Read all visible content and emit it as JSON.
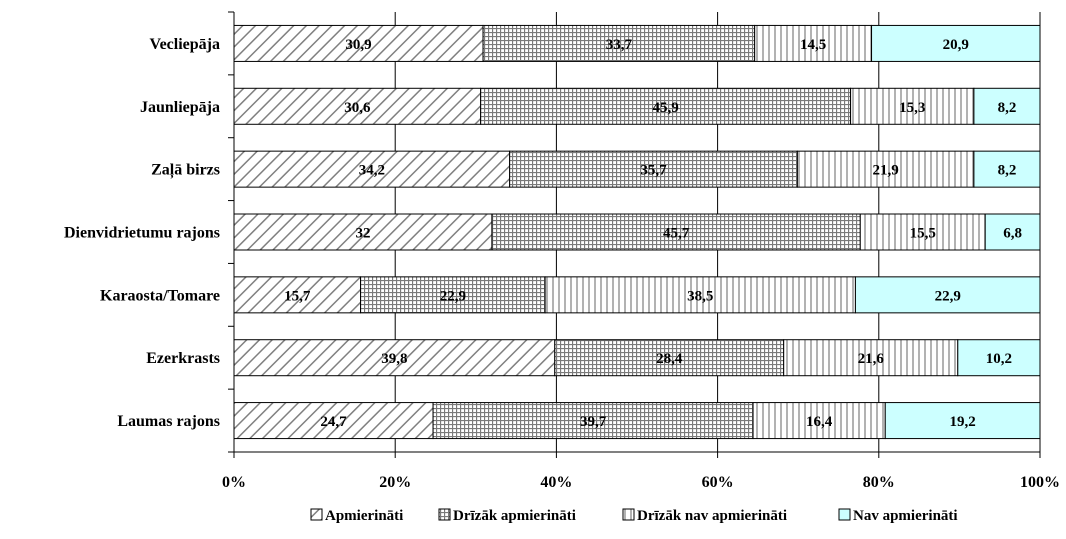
{
  "chart_data": {
    "type": "bar",
    "orientation": "horizontal",
    "stacked": "percent",
    "categories": [
      "Vecliepāja",
      "Jaunliepāja",
      "Zaļā birzs",
      "Dienvidrietumu rajons",
      "Karaosta/Tomare",
      "Ezerkrasts",
      "Laumas rajons"
    ],
    "series": [
      {
        "name": "Apmierināti",
        "values": [
          30.9,
          30.6,
          34.2,
          32,
          15.7,
          39.8,
          24.7
        ],
        "labels": [
          "30,9",
          "30,6",
          "34,2",
          "32",
          "15,7",
          "39,8",
          "24,7"
        ],
        "pattern": "diagonal-hatch",
        "color": "#808080"
      },
      {
        "name": "Drīzāk apmierināti",
        "values": [
          33.7,
          45.9,
          35.7,
          45.7,
          22.9,
          28.4,
          39.7
        ],
        "labels": [
          "33,7",
          "45,9",
          "35,7",
          "45,7",
          "22,9",
          "28,4",
          "39,7"
        ],
        "pattern": "grid",
        "color": "#808080"
      },
      {
        "name": "Drīzāk nav apmierināti",
        "values": [
          14.5,
          15.3,
          21.9,
          15.5,
          38.5,
          21.6,
          16.4
        ],
        "labels": [
          "14,5",
          "15,3",
          "21,9",
          "15,5",
          "38,5",
          "21,6",
          "16,4"
        ],
        "pattern": "vertical-lines",
        "color": "#808080"
      },
      {
        "name": "Nav apmierināti",
        "values": [
          20.9,
          8.2,
          8.2,
          6.8,
          22.9,
          10.2,
          19.2
        ],
        "labels": [
          "20,9",
          "8,2",
          "8,2",
          "6,8",
          "22,9",
          "10,2",
          "19,2"
        ],
        "pattern": "solid",
        "color": "#ccffff"
      }
    ],
    "xticks": [
      "0%",
      "20%",
      "40%",
      "60%",
      "80%",
      "100%"
    ],
    "xlim": [
      0,
      100
    ],
    "grid": "vertical",
    "legend": "bottom-center",
    "title": "",
    "xlabel": "",
    "ylabel": ""
  }
}
